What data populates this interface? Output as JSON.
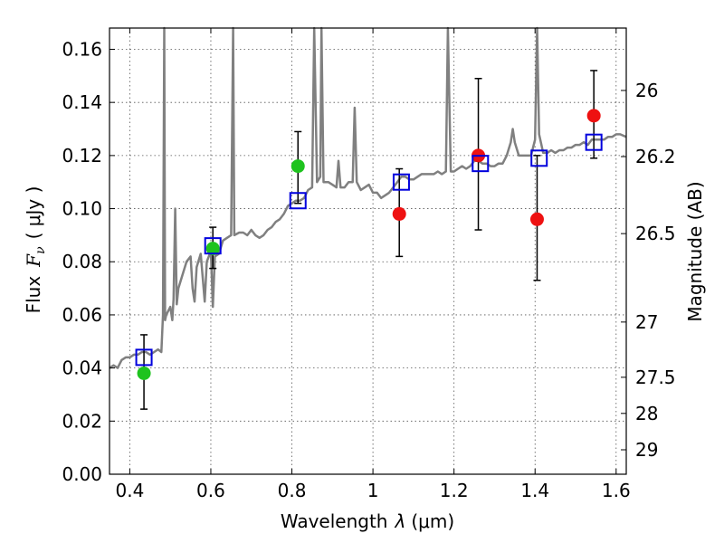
{
  "chart_data": {
    "type": "scatter",
    "xlabel_prefix": "Wavelength",
    "xlabel_sym": "λ",
    "xlabel_unit": "(μm)",
    "ylabel_prefix": "Flux",
    "ylabel_sym": "F",
    "ylabel_sub": "ν",
    "ylabel_unit": "( μJy )",
    "y2label": "Magnitude (AB)",
    "xlim": [
      0.35,
      1.625
    ],
    "ylim": [
      0.0,
      0.168
    ],
    "grid": true,
    "x_ticks": [
      0.4,
      0.6,
      0.8,
      1.0,
      1.2,
      1.4,
      1.6
    ],
    "x_tick_labels": [
      "0.4",
      "0.6",
      "0.8",
      "1",
      "1.2",
      "1.4",
      "1.6"
    ],
    "y_ticks": [
      0.0,
      0.02,
      0.04,
      0.06,
      0.08,
      0.1,
      0.12,
      0.14,
      0.16
    ],
    "y_tick_labels": [
      "0.00",
      "0.02",
      "0.04",
      "0.06",
      "0.08",
      "0.10",
      "0.12",
      "0.14",
      "0.16"
    ],
    "y2_ticks": [
      {
        "flux": 0.1445,
        "label": "26"
      },
      {
        "flux": 0.1196,
        "label": "26.2"
      },
      {
        "flux": 0.0906,
        "label": "26.5"
      },
      {
        "flux": 0.0573,
        "label": "27"
      },
      {
        "flux": 0.0365,
        "label": "27.5"
      },
      {
        "flux": 0.0229,
        "label": "28"
      },
      {
        "flux": 0.0092,
        "label": "29"
      }
    ],
    "model_spectrum": {
      "color": "#808080",
      "points": [
        [
          0.35,
          0.04
        ],
        [
          0.36,
          0.041
        ],
        [
          0.37,
          0.04
        ],
        [
          0.38,
          0.043
        ],
        [
          0.39,
          0.044
        ],
        [
          0.4,
          0.044
        ],
        [
          0.41,
          0.045
        ],
        [
          0.42,
          0.045
        ],
        [
          0.43,
          0.046
        ],
        [
          0.44,
          0.046
        ],
        [
          0.45,
          0.045
        ],
        [
          0.46,
          0.046
        ],
        [
          0.47,
          0.047
        ],
        [
          0.478,
          0.046
        ],
        [
          0.482,
          0.06
        ],
        [
          0.485,
          0.168
        ],
        [
          0.487,
          0.058
        ],
        [
          0.49,
          0.06
        ],
        [
          0.5,
          0.063
        ],
        [
          0.505,
          0.058
        ],
        [
          0.508,
          0.066
        ],
        [
          0.512,
          0.1
        ],
        [
          0.516,
          0.064
        ],
        [
          0.52,
          0.07
        ],
        [
          0.53,
          0.075
        ],
        [
          0.54,
          0.08
        ],
        [
          0.55,
          0.082
        ],
        [
          0.555,
          0.07
        ],
        [
          0.56,
          0.065
        ],
        [
          0.565,
          0.078
        ],
        [
          0.575,
          0.083
        ],
        [
          0.585,
          0.065
        ],
        [
          0.59,
          0.08
        ],
        [
          0.6,
          0.084
        ],
        [
          0.605,
          0.063
        ],
        [
          0.61,
          0.082
        ],
        [
          0.62,
          0.083
        ],
        [
          0.63,
          0.088
        ],
        [
          0.64,
          0.089
        ],
        [
          0.65,
          0.09
        ],
        [
          0.655,
          0.168
        ],
        [
          0.658,
          0.09
        ],
        [
          0.67,
          0.091
        ],
        [
          0.68,
          0.091
        ],
        [
          0.69,
          0.09
        ],
        [
          0.7,
          0.092
        ],
        [
          0.71,
          0.09
        ],
        [
          0.72,
          0.089
        ],
        [
          0.73,
          0.09
        ],
        [
          0.74,
          0.092
        ],
        [
          0.75,
          0.093
        ],
        [
          0.76,
          0.095
        ],
        [
          0.77,
          0.096
        ],
        [
          0.78,
          0.098
        ],
        [
          0.79,
          0.101
        ],
        [
          0.8,
          0.102
        ],
        [
          0.81,
          0.103
        ],
        [
          0.82,
          0.103
        ],
        [
          0.83,
          0.104
        ],
        [
          0.84,
          0.107
        ],
        [
          0.85,
          0.108
        ],
        [
          0.855,
          0.168
        ],
        [
          0.862,
          0.11
        ],
        [
          0.87,
          0.112
        ],
        [
          0.873,
          0.168
        ],
        [
          0.878,
          0.11
        ],
        [
          0.89,
          0.11
        ],
        [
          0.9,
          0.109
        ],
        [
          0.91,
          0.108
        ],
        [
          0.915,
          0.118
        ],
        [
          0.92,
          0.108
        ],
        [
          0.93,
          0.108
        ],
        [
          0.94,
          0.11
        ],
        [
          0.95,
          0.11
        ],
        [
          0.955,
          0.138
        ],
        [
          0.96,
          0.11
        ],
        [
          0.97,
          0.107
        ],
        [
          0.98,
          0.108
        ],
        [
          0.99,
          0.109
        ],
        [
          1.0,
          0.106
        ],
        [
          1.01,
          0.106
        ],
        [
          1.02,
          0.104
        ],
        [
          1.03,
          0.105
        ],
        [
          1.04,
          0.106
        ],
        [
          1.05,
          0.108
        ],
        [
          1.06,
          0.11
        ],
        [
          1.07,
          0.112
        ],
        [
          1.08,
          0.112
        ],
        [
          1.09,
          0.111
        ],
        [
          1.1,
          0.111
        ],
        [
          1.11,
          0.112
        ],
        [
          1.12,
          0.113
        ],
        [
          1.13,
          0.113
        ],
        [
          1.14,
          0.113
        ],
        [
          1.15,
          0.113
        ],
        [
          1.16,
          0.114
        ],
        [
          1.17,
          0.113
        ],
        [
          1.18,
          0.114
        ],
        [
          1.185,
          0.168
        ],
        [
          1.192,
          0.114
        ],
        [
          1.2,
          0.114
        ],
        [
          1.21,
          0.115
        ],
        [
          1.22,
          0.116
        ],
        [
          1.23,
          0.115
        ],
        [
          1.24,
          0.116
        ],
        [
          1.25,
          0.118
        ],
        [
          1.26,
          0.118
        ],
        [
          1.27,
          0.117
        ],
        [
          1.28,
          0.117
        ],
        [
          1.29,
          0.116
        ],
        [
          1.3,
          0.116
        ],
        [
          1.31,
          0.117
        ],
        [
          1.32,
          0.117
        ],
        [
          1.33,
          0.12
        ],
        [
          1.34,
          0.125
        ],
        [
          1.345,
          0.13
        ],
        [
          1.35,
          0.125
        ],
        [
          1.36,
          0.12
        ],
        [
          1.37,
          0.12
        ],
        [
          1.38,
          0.12
        ],
        [
          1.39,
          0.12
        ],
        [
          1.4,
          0.126
        ],
        [
          1.405,
          0.168
        ],
        [
          1.41,
          0.128
        ],
        [
          1.42,
          0.121
        ],
        [
          1.43,
          0.121
        ],
        [
          1.44,
          0.122
        ],
        [
          1.45,
          0.121
        ],
        [
          1.46,
          0.122
        ],
        [
          1.47,
          0.122
        ],
        [
          1.48,
          0.123
        ],
        [
          1.49,
          0.123
        ],
        [
          1.5,
          0.124
        ],
        [
          1.51,
          0.124
        ],
        [
          1.52,
          0.125
        ],
        [
          1.53,
          0.124
        ],
        [
          1.54,
          0.126
        ],
        [
          1.55,
          0.126
        ],
        [
          1.56,
          0.126
        ],
        [
          1.57,
          0.126
        ],
        [
          1.58,
          0.127
        ],
        [
          1.59,
          0.127
        ],
        [
          1.6,
          0.128
        ],
        [
          1.61,
          0.128
        ],
        [
          1.625,
          0.127
        ]
      ]
    },
    "series": [
      {
        "marker": "circle",
        "color": "#1ec31e",
        "points": [
          {
            "x": 0.435,
            "y": 0.038,
            "err_lo": 0.0245,
            "err_hi": 0.0525
          },
          {
            "x": 0.605,
            "y": 0.085,
            "err_lo": 0.0775,
            "err_hi": 0.093
          },
          {
            "x": 0.815,
            "y": 0.116,
            "err_lo": 0.102,
            "err_hi": 0.129
          }
        ]
      },
      {
        "marker": "circle",
        "color": "#ee1111",
        "points": [
          {
            "x": 1.065,
            "y": 0.098,
            "err_lo": 0.082,
            "err_hi": 0.115
          },
          {
            "x": 1.26,
            "y": 0.12,
            "err_lo": 0.092,
            "err_hi": 0.149
          },
          {
            "x": 1.405,
            "y": 0.096,
            "err_lo": 0.073,
            "err_hi": 0.12
          },
          {
            "x": 1.545,
            "y": 0.135,
            "err_lo": 0.119,
            "err_hi": 0.152
          }
        ]
      },
      {
        "marker": "open-square",
        "color": "#0000dd",
        "points": [
          {
            "x": 0.435,
            "y": 0.044
          },
          {
            "x": 0.605,
            "y": 0.086
          },
          {
            "x": 0.815,
            "y": 0.103
          },
          {
            "x": 1.07,
            "y": 0.11
          },
          {
            "x": 1.265,
            "y": 0.117
          },
          {
            "x": 1.41,
            "y": 0.119
          },
          {
            "x": 1.545,
            "y": 0.125
          }
        ]
      }
    ]
  }
}
